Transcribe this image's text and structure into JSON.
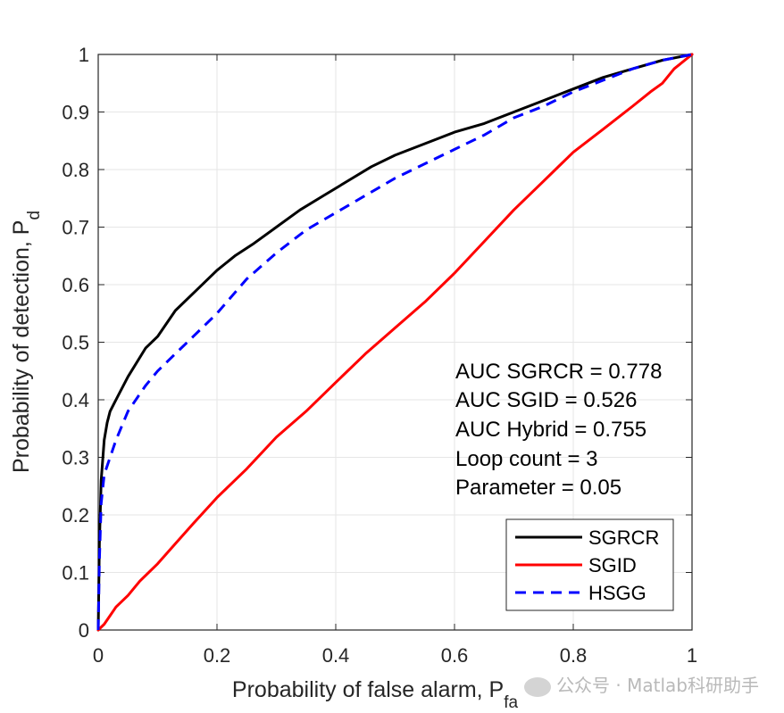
{
  "chart_data": {
    "type": "line",
    "xlabel_main": "Probability of false alarm, P",
    "xlabel_sub": "fa",
    "ylabel_main": "Probability of detection, P",
    "ylabel_sub": "d",
    "xlim": [
      0,
      1
    ],
    "ylim": [
      0,
      1
    ],
    "x_ticks": [
      "0",
      "0.2",
      "0.4",
      "0.6",
      "0.8",
      "1"
    ],
    "y_ticks": [
      "0",
      "0.1",
      "0.2",
      "0.3",
      "0.4",
      "0.5",
      "0.6",
      "0.7",
      "0.8",
      "0.9",
      "1"
    ],
    "grid": true,
    "legend_position": "bottom-right",
    "annotations": [
      "AUC SGRCR = 0.778",
      "AUC SGID = 0.526",
      "AUC Hybrid = 0.755",
      "Loop count = 3",
      "Parameter = 0.05"
    ],
    "series": [
      {
        "name": "SGRCR",
        "color": "#000000",
        "dash": "solid",
        "x": [
          0,
          0.002,
          0.005,
          0.01,
          0.015,
          0.02,
          0.03,
          0.05,
          0.08,
          0.1,
          0.13,
          0.16,
          0.2,
          0.23,
          0.26,
          0.3,
          0.34,
          0.38,
          0.42,
          0.46,
          0.5,
          0.55,
          0.6,
          0.65,
          0.7,
          0.75,
          0.8,
          0.85,
          0.9,
          0.95,
          1.0
        ],
        "y": [
          0,
          0.15,
          0.26,
          0.33,
          0.36,
          0.38,
          0.4,
          0.44,
          0.49,
          0.51,
          0.555,
          0.585,
          0.625,
          0.65,
          0.67,
          0.7,
          0.73,
          0.755,
          0.78,
          0.805,
          0.825,
          0.845,
          0.865,
          0.88,
          0.9,
          0.92,
          0.94,
          0.96,
          0.975,
          0.99,
          1.0
        ]
      },
      {
        "name": "SGID",
        "color": "#ff0000",
        "dash": "solid",
        "x": [
          0,
          0.01,
          0.02,
          0.03,
          0.05,
          0.07,
          0.1,
          0.13,
          0.16,
          0.2,
          0.25,
          0.3,
          0.35,
          0.4,
          0.45,
          0.5,
          0.55,
          0.6,
          0.65,
          0.7,
          0.75,
          0.78,
          0.8,
          0.85,
          0.9,
          0.93,
          0.95,
          0.97,
          1.0
        ],
        "y": [
          0,
          0.01,
          0.025,
          0.04,
          0.06,
          0.085,
          0.115,
          0.15,
          0.185,
          0.23,
          0.28,
          0.335,
          0.38,
          0.43,
          0.48,
          0.525,
          0.57,
          0.62,
          0.675,
          0.73,
          0.78,
          0.81,
          0.83,
          0.87,
          0.91,
          0.935,
          0.95,
          0.975,
          1.0
        ]
      },
      {
        "name": "HSGG",
        "color": "#0000ff",
        "dash": "dashed",
        "x": [
          0,
          0.002,
          0.005,
          0.01,
          0.02,
          0.03,
          0.05,
          0.08,
          0.1,
          0.13,
          0.16,
          0.2,
          0.25,
          0.3,
          0.35,
          0.4,
          0.45,
          0.5,
          0.55,
          0.6,
          0.65,
          0.7,
          0.75,
          0.8,
          0.85,
          0.9,
          0.95,
          1.0
        ],
        "y": [
          0,
          0.12,
          0.22,
          0.27,
          0.3,
          0.33,
          0.38,
          0.425,
          0.45,
          0.48,
          0.51,
          0.55,
          0.61,
          0.655,
          0.695,
          0.725,
          0.755,
          0.785,
          0.81,
          0.835,
          0.86,
          0.89,
          0.91,
          0.935,
          0.955,
          0.975,
          0.99,
          1.0
        ]
      }
    ]
  },
  "watermark": "公众号 · Matlab科研助手",
  "colors": {
    "grid": "#e6e6e6",
    "axis": "#262626",
    "background": "#ffffff"
  }
}
